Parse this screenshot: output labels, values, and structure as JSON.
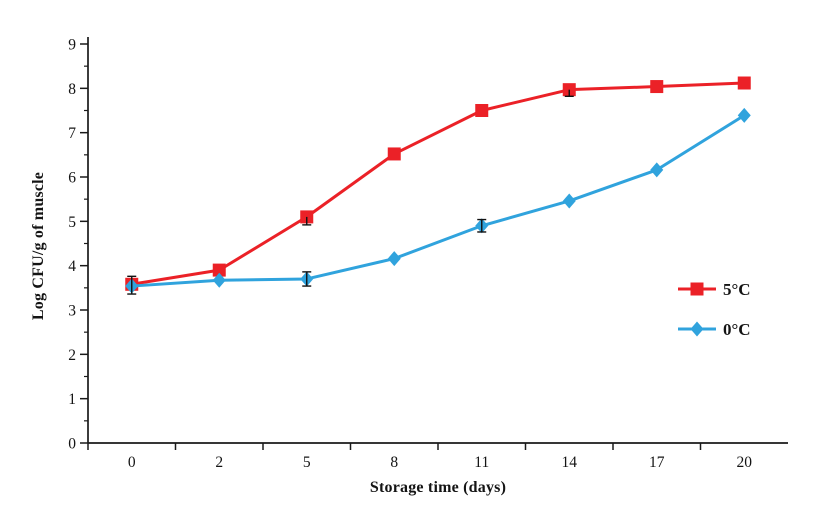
{
  "chart_data": {
    "type": "line",
    "title": "",
    "xlabel": "Storage time (days)",
    "ylabel": "Log CFU/g of muscle",
    "categories": [
      "0",
      "2",
      "5",
      "8",
      "11",
      "14",
      "17",
      "20"
    ],
    "ylim": [
      0,
      9
    ],
    "y_ticks": [
      0,
      1,
      2,
      3,
      4,
      5,
      6,
      7,
      8,
      9
    ],
    "y_minor_step": 0.5,
    "grid": false,
    "legend_position": "right-middle",
    "axis_color": "#1a1a1a",
    "series": [
      {
        "name": "5°C",
        "color": "#EB2127",
        "marker": "square",
        "values": [
          3.58,
          3.9,
          5.1,
          6.52,
          7.5,
          7.97,
          8.04,
          8.12
        ]
      },
      {
        "name": "0°C",
        "color": "#30A3DD",
        "marker": "diamond",
        "values": [
          3.54,
          3.67,
          3.7,
          4.16,
          4.9,
          5.46,
          6.16,
          7.39
        ]
      }
    ],
    "error_bars": [
      {
        "series": 0,
        "index": 0,
        "plus": 0.18,
        "minus": 0.22
      },
      {
        "series": 0,
        "index": 2,
        "plus": 0.0,
        "minus": 0.18
      },
      {
        "series": 0,
        "index": 5,
        "plus": 0.0,
        "minus": 0.15
      },
      {
        "series": 1,
        "index": 2,
        "plus": 0.16,
        "minus": 0.16
      },
      {
        "series": 1,
        "index": 4,
        "plus": 0.14,
        "minus": 0.14
      }
    ]
  }
}
